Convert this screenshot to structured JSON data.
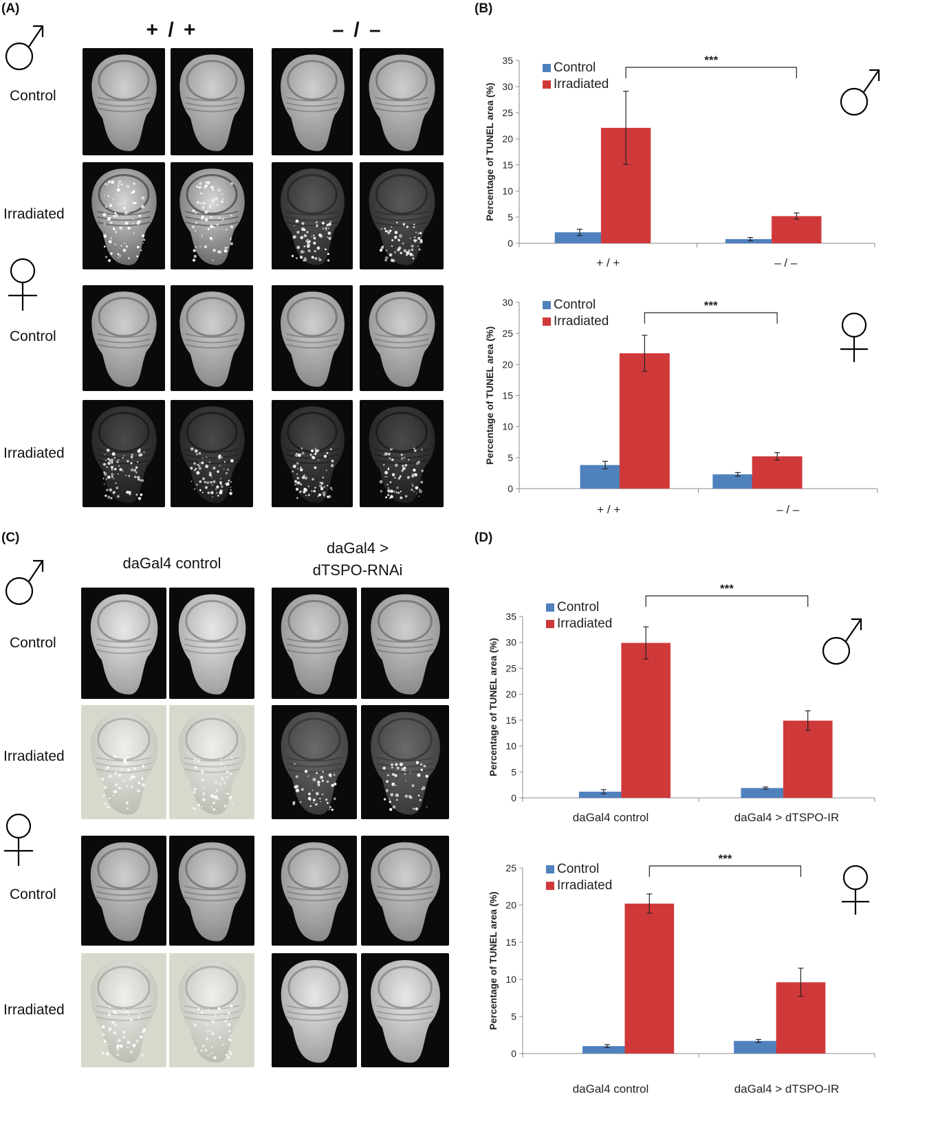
{
  "panels": {
    "A": {
      "label": "(A)",
      "col_headers": [
        "+ / +",
        "– / –"
      ],
      "row_labels": [
        "Control",
        "Irradiated",
        "Control",
        "Irradiated"
      ]
    },
    "B": {
      "label": "(B)"
    },
    "C": {
      "label": "(C)",
      "col_headers": [
        "daGal4 control",
        "daGal4 >",
        "dTSPO-RNAi"
      ],
      "row_labels": [
        "Control",
        "Irradiated",
        "Control",
        "Irradiated"
      ]
    },
    "D": {
      "label": "(D)"
    }
  },
  "colors": {
    "control": "#4f81bd",
    "irradiated": "#d0393a"
  },
  "chart_data": [
    {
      "id": "B-male",
      "type": "bar",
      "panel": "B",
      "categories": [
        "+ / +",
        "– / –"
      ],
      "series": [
        {
          "name": "Control",
          "values": [
            2.1,
            0.8
          ],
          "errors": [
            0.6,
            0.3
          ]
        },
        {
          "name": "Irradiated",
          "values": [
            22.1,
            5.2
          ],
          "errors": [
            7.0,
            0.6
          ]
        }
      ],
      "ylabel": "Percentage of TUNEL area (%)",
      "ylim": [
        0,
        35
      ],
      "yticks": [
        0,
        5,
        10,
        15,
        20,
        25,
        30,
        35
      ],
      "significance": "***",
      "legend": "top-left",
      "sex": "male"
    },
    {
      "id": "B-female",
      "type": "bar",
      "panel": "B",
      "categories": [
        "+ / +",
        "– / –"
      ],
      "series": [
        {
          "name": "Control",
          "values": [
            3.8,
            2.3
          ],
          "errors": [
            0.6,
            0.3
          ]
        },
        {
          "name": "Irradiated",
          "values": [
            21.8,
            5.2
          ],
          "errors": [
            2.9,
            0.6
          ]
        }
      ],
      "ylabel": "Percentage of TUNEL area (%)",
      "ylim": [
        0,
        30
      ],
      "yticks": [
        0,
        5,
        10,
        15,
        20,
        25,
        30
      ],
      "significance": "***",
      "legend": "top-left",
      "sex": "female"
    },
    {
      "id": "D-male",
      "type": "bar",
      "panel": "D",
      "categories": [
        "daGal4 control",
        "daGal4 > dTSPO-IR"
      ],
      "series": [
        {
          "name": "Control",
          "values": [
            1.2,
            1.9
          ],
          "errors": [
            0.4,
            0.2
          ]
        },
        {
          "name": "Irradiated",
          "values": [
            29.9,
            14.9
          ],
          "errors": [
            3.1,
            1.9
          ]
        }
      ],
      "ylabel": "Percentage of TUNEL area (%)",
      "ylim": [
        0,
        35
      ],
      "yticks": [
        0,
        5,
        10,
        15,
        20,
        25,
        30,
        35
      ],
      "significance": "***",
      "legend": "top-left",
      "sex": "male"
    },
    {
      "id": "D-female",
      "type": "bar",
      "panel": "D",
      "categories": [
        "daGal4 control",
        "daGal4 > dTSPO-IR"
      ],
      "series": [
        {
          "name": "Control",
          "values": [
            1.0,
            1.7
          ],
          "errors": [
            0.2,
            0.2
          ]
        },
        {
          "name": "Irradiated",
          "values": [
            20.2,
            9.6
          ],
          "errors": [
            1.3,
            1.9
          ]
        }
      ],
      "ylabel": "Percentage of TUNEL area (%)",
      "ylim": [
        0,
        25
      ],
      "yticks": [
        0,
        5,
        10,
        15,
        20,
        25
      ],
      "significance": "***",
      "legend": "top-left",
      "sex": "female"
    }
  ]
}
